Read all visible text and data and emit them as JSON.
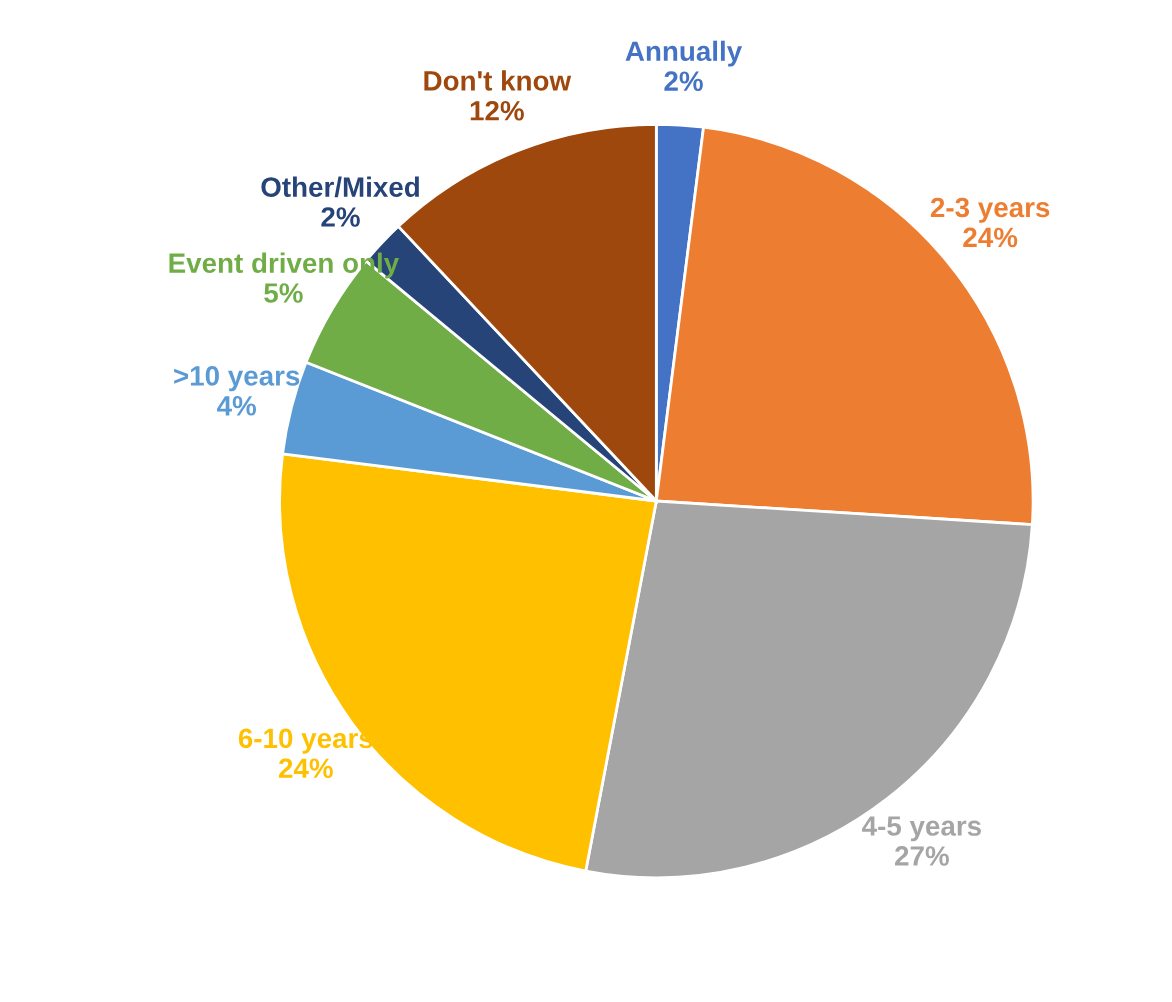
{
  "chart_data": {
    "type": "pie",
    "categories": [
      "Annually",
      "2-3 years",
      "4-5 years",
      "6-10 years",
      ">10 years",
      "Event driven only",
      "Other/Mixed",
      "Don't know"
    ],
    "values": [
      2,
      24,
      27,
      24,
      4,
      5,
      2,
      12
    ],
    "value_labels": [
      "2%",
      "24%",
      "27%",
      "24%",
      "4%",
      "5%",
      "2%",
      "12%"
    ],
    "colors": [
      "#4472c4",
      "#ed7d31",
      "#a5a5a5",
      "#ffc000",
      "#5b9bd5",
      "#70ad47",
      "#264478",
      "#9e480e"
    ],
    "legend": false
  }
}
